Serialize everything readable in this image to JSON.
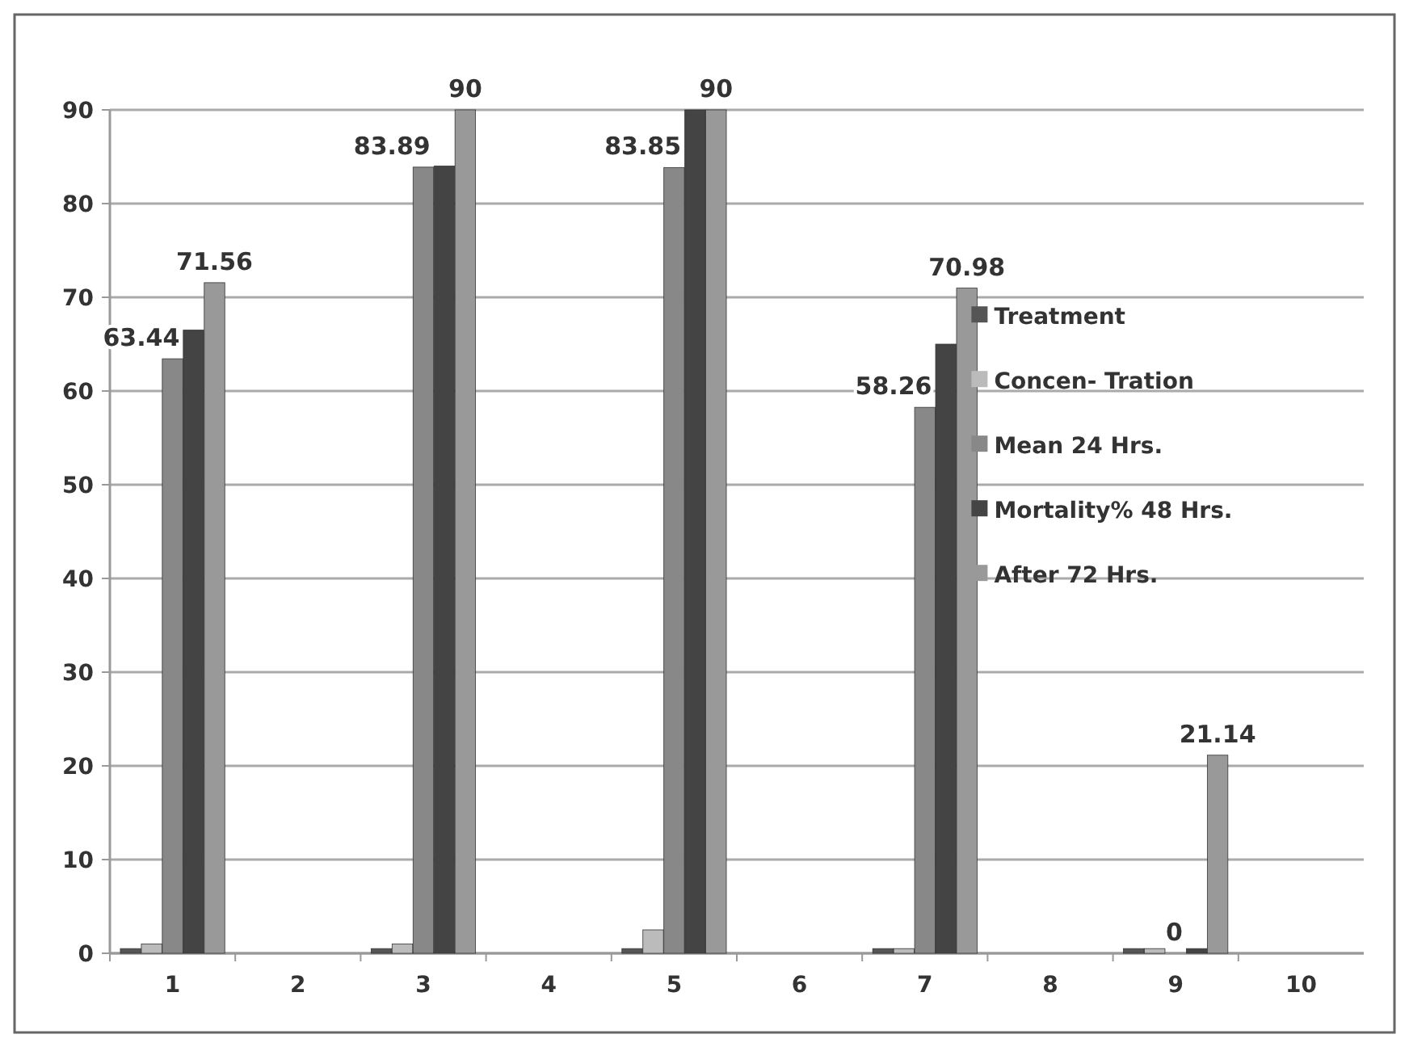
{
  "chart_data": {
    "type": "bar",
    "categories": [
      "1",
      "2",
      "3",
      "4",
      "5",
      "6",
      "7",
      "8",
      "9",
      "10"
    ],
    "series": [
      {
        "name": "Treatment",
        "color": "#555555",
        "values": [
          0.5,
          null,
          0.5,
          null,
          0.5,
          null,
          0.5,
          null,
          0.5,
          null
        ]
      },
      {
        "name": "Concen- Tration",
        "color": "#bbbbbb",
        "values": [
          1,
          null,
          1,
          null,
          2.5,
          null,
          0.5,
          null,
          0.5,
          null
        ]
      },
      {
        "name": "Mean 24 Hrs.",
        "color": "#888888",
        "values": [
          63.44,
          null,
          83.89,
          null,
          83.85,
          null,
          58.26,
          null,
          0,
          null
        ],
        "value_labels": [
          "63.44",
          null,
          "83.89",
          null,
          "83.85",
          null,
          "58.26",
          null,
          "0",
          null
        ]
      },
      {
        "name": "Mortality%  48 Hrs.",
        "color": "#444444",
        "values": [
          66.5,
          null,
          84,
          null,
          90,
          null,
          65,
          null,
          0.5,
          null
        ]
      },
      {
        "name": "After 72 Hrs.",
        "color": "#999999",
        "values": [
          71.56,
          null,
          90,
          null,
          90,
          null,
          70.98,
          null,
          21.14,
          null
        ],
        "value_labels": [
          "71.56",
          null,
          "90",
          null,
          "90",
          null,
          "70.98",
          null,
          "21.14",
          null
        ]
      }
    ],
    "ylim": [
      0,
      90
    ],
    "yticks": [
      0,
      10,
      20,
      30,
      40,
      50,
      60,
      70,
      80,
      90
    ],
    "grid": "y",
    "legend": "right"
  }
}
